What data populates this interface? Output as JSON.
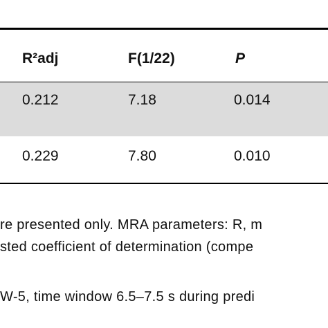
{
  "table": {
    "header": [
      "R²adj",
      "F(1/22)",
      "P"
    ],
    "rows": [
      [
        "0.212",
        "7.18",
        "0.014"
      ],
      [
        "0.229",
        "7.80",
        "0.010"
      ]
    ]
  },
  "footnotes": [
    "re presented only. MRA parameters: R, m",
    "sted coefficient of determination (compe",
    "W-5, time window 6.5–7.5 s during predi"
  ]
}
